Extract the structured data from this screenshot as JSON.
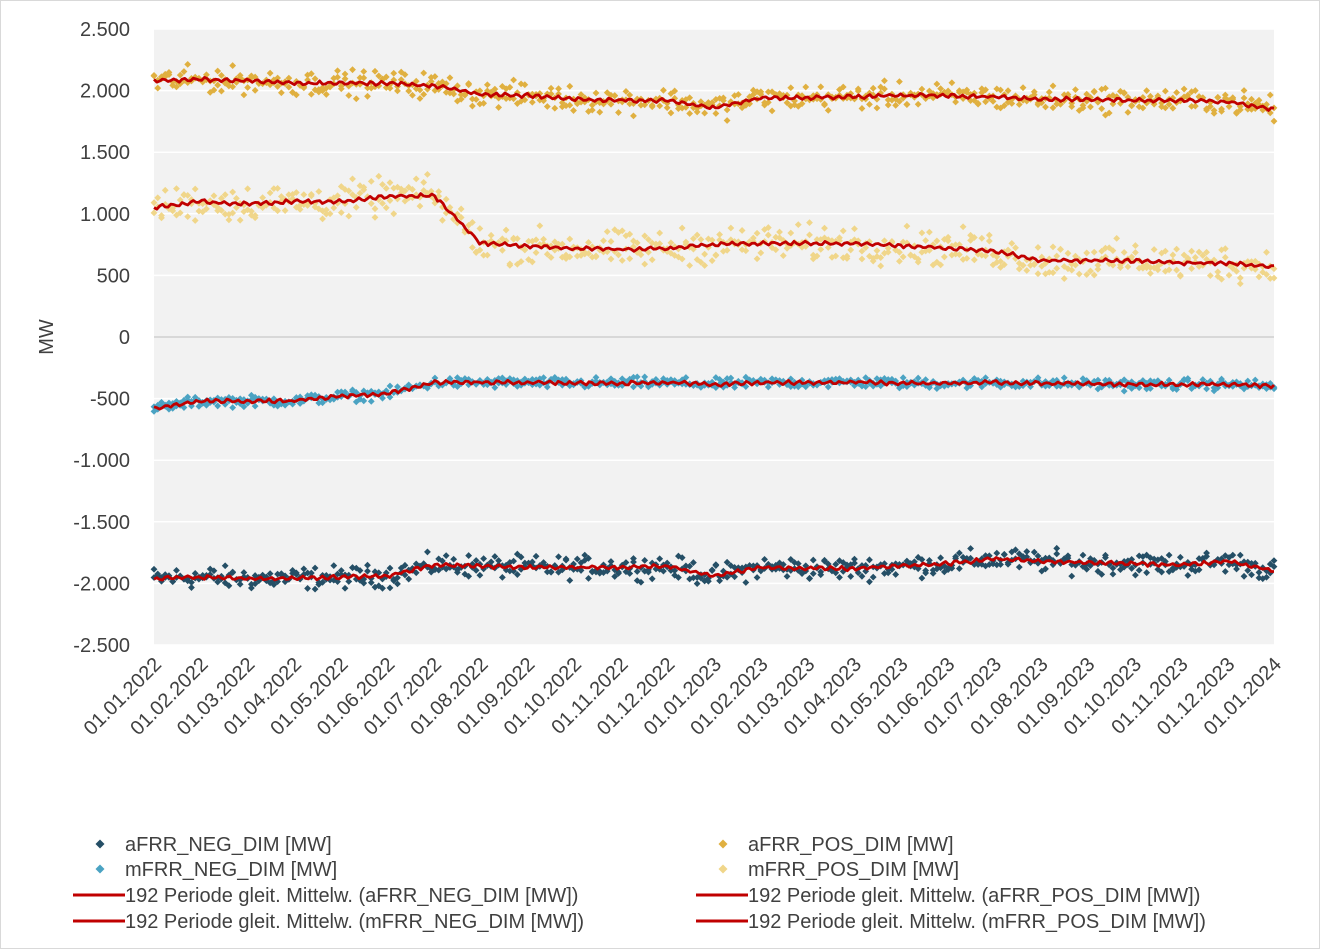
{
  "chart_data": {
    "type": "scatter",
    "title": "",
    "xlabel": "",
    "ylabel": "MW",
    "ylim": [
      -2500,
      2500
    ],
    "y_ticks": [
      "2.500",
      "2.000",
      "1.500",
      "1.000",
      "500",
      "0",
      "-500",
      "-1.000",
      "-1.500",
      "-2.000",
      "-2.500"
    ],
    "y_tick_values": [
      2500,
      2000,
      1500,
      1000,
      500,
      0,
      -500,
      -1000,
      -1500,
      -2000,
      -2500
    ],
    "x_ticks": [
      "01.01.2022",
      "01.02.2022",
      "01.03.2022",
      "01.04.2022",
      "01.05.2022",
      "01.06.2022",
      "01.07.2022",
      "01.08.2022",
      "01.09.2022",
      "01.10.2022",
      "01.11.2022",
      "01.12.2022",
      "01.01.2023",
      "01.02.2023",
      "01.03.2023",
      "01.04.2023",
      "01.05.2023",
      "01.06.2023",
      "01.07.2023",
      "01.08.2023",
      "01.09.2023",
      "01.10.2023",
      "01.11.2023",
      "01.12.2023",
      "01.01.2024"
    ],
    "grid": true,
    "legend_position": "bottom",
    "series": [
      {
        "name": "aFRR_NEG_DIM [MW]",
        "kind": "scatter",
        "color": "#254f66",
        "mean": [
          -1960,
          -1950,
          -1960,
          -1960,
          -1950,
          -1940,
          -1850,
          -1860,
          -1870,
          -1870,
          -1870,
          -1860,
          -1940,
          -1870,
          -1880,
          -1880,
          -1860,
          -1840,
          -1800,
          -1820,
          -1830,
          -1840,
          -1850,
          -1820,
          -1900
        ],
        "spread": 80
      },
      {
        "name": "mFRR_NEG_DIM [MW]",
        "kind": "scatter",
        "color": "#4ba3c3",
        "mean": [
          -580,
          -520,
          -520,
          -520,
          -480,
          -460,
          -370,
          -370,
          -370,
          -375,
          -375,
          -370,
          -385,
          -370,
          -370,
          -365,
          -375,
          -375,
          -370,
          -375,
          -380,
          -385,
          -385,
          -385,
          -400
        ],
        "spread": 40
      },
      {
        "name": "aFRR_POS_DIM [MW]",
        "kind": "scatter",
        "color": "#e0b040",
        "mean": [
          2080,
          2090,
          2080,
          2060,
          2060,
          2060,
          2040,
          1970,
          1960,
          1930,
          1920,
          1920,
          1860,
          1940,
          1940,
          1950,
          1960,
          1960,
          1950,
          1930,
          1930,
          1920,
          1920,
          1910,
          1850
        ],
        "spread": 90
      },
      {
        "name": "mFRR_POS_DIM [MW]",
        "kind": "scatter",
        "color": "#f0d68a",
        "mean": [
          1050,
          1100,
          1080,
          1100,
          1100,
          1140,
          1150,
          760,
          740,
          720,
          710,
          720,
          750,
          760,
          760,
          760,
          740,
          720,
          700,
          620,
          620,
          620,
          600,
          600,
          570
        ],
        "spread": 130
      },
      {
        "name": "192 Periode gleit. Mittelw. (aFRR_NEG_DIM [MW])",
        "kind": "line",
        "color": "#c00000",
        "values": [
          -1960,
          -1950,
          -1960,
          -1960,
          -1950,
          -1940,
          -1850,
          -1860,
          -1870,
          -1870,
          -1870,
          -1860,
          -1940,
          -1870,
          -1880,
          -1880,
          -1860,
          -1840,
          -1800,
          -1820,
          -1830,
          -1840,
          -1850,
          -1820,
          -1900
        ]
      },
      {
        "name": "192 Periode gleit. Mittelw. (mFRR_NEG_DIM [MW])",
        "kind": "line",
        "color": "#c00000",
        "values": [
          -580,
          -520,
          -520,
          -520,
          -480,
          -460,
          -370,
          -370,
          -370,
          -375,
          -375,
          -370,
          -385,
          -370,
          -370,
          -365,
          -375,
          -375,
          -370,
          -375,
          -380,
          -385,
          -385,
          -385,
          -400
        ]
      },
      {
        "name": "192 Periode gleit. Mittelw. (aFRR_POS_DIM [MW])",
        "kind": "line",
        "color": "#c00000",
        "values": [
          2080,
          2090,
          2080,
          2060,
          2060,
          2060,
          2040,
          1970,
          1960,
          1930,
          1920,
          1920,
          1860,
          1940,
          1940,
          1950,
          1960,
          1960,
          1950,
          1930,
          1930,
          1920,
          1920,
          1910,
          1850
        ]
      },
      {
        "name": "192 Periode gleit. Mittelw. (mFRR_POS_DIM [MW])",
        "kind": "line",
        "color": "#c00000",
        "values": [
          1050,
          1100,
          1080,
          1100,
          1100,
          1140,
          1150,
          760,
          740,
          720,
          710,
          720,
          750,
          760,
          760,
          760,
          740,
          720,
          700,
          620,
          620,
          620,
          600,
          600,
          570
        ]
      }
    ]
  },
  "colors": {
    "plot_background": "#f2f2f2",
    "gridline": "#ffffff",
    "axis_text": "#404040"
  }
}
